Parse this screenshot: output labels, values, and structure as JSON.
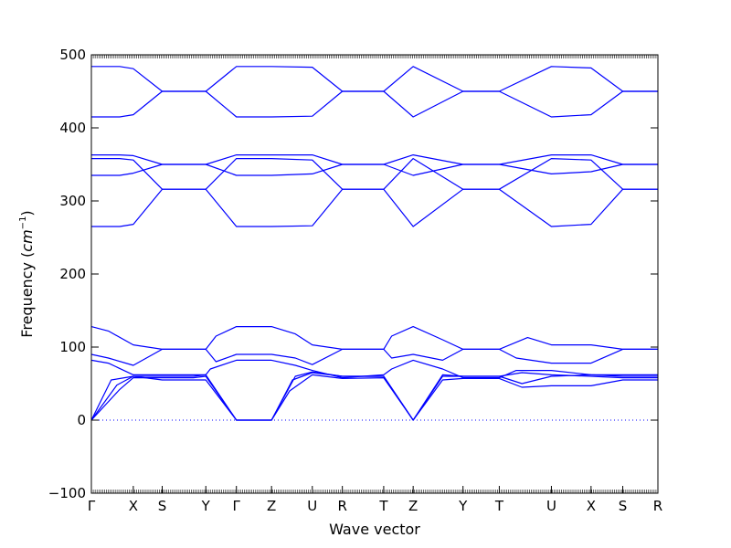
{
  "chart_data": {
    "type": "line",
    "title": "",
    "xlabel": "Wave vector",
    "ylabel_prefix": "Frequency (",
    "ylabel_unit": "cm",
    "ylabel_exp": "−1",
    "ylabel_suffix": ")",
    "ylim": [
      -100,
      500
    ],
    "yticks": [
      "−100",
      "0",
      "100",
      "200",
      "300",
      "400",
      "500"
    ],
    "ytick_values": [
      -100,
      0,
      100,
      200,
      300,
      400,
      500
    ],
    "grid": false,
    "legend": "none",
    "zero_line": true,
    "line_color": "#0000ff",
    "q_points": [
      "Γ",
      "X",
      "S",
      "Y",
      "Γ",
      "Z",
      "U",
      "R",
      "T",
      "Z",
      "Y",
      "T",
      "U",
      "X",
      "S",
      "R"
    ],
    "q_positions": [
      0.0,
      0.74,
      1.25,
      2.02,
      2.56,
      3.18,
      3.9,
      4.43,
      5.16,
      5.68,
      6.56,
      7.2,
      8.12,
      8.82,
      9.38,
      10.0
    ],
    "series": [
      {
        "points": [
          [
            0,
            0
          ],
          [
            0.5,
            42
          ],
          [
            0.74,
            58
          ],
          [
            1.25,
            58
          ],
          [
            1.8,
            58
          ],
          [
            2.02,
            60
          ],
          [
            2.56,
            0
          ],
          [
            3.18,
            0
          ],
          [
            3.5,
            40
          ],
          [
            3.9,
            62
          ],
          [
            4.43,
            57
          ],
          [
            5.16,
            58
          ],
          [
            5.68,
            0
          ],
          [
            6.2,
            55
          ],
          [
            6.56,
            57
          ],
          [
            7.2,
            57
          ],
          [
            7.6,
            45
          ],
          [
            8.12,
            47
          ],
          [
            8.82,
            47
          ],
          [
            9.38,
            55
          ],
          [
            10,
            55
          ]
        ]
      },
      {
        "points": [
          [
            0,
            0
          ],
          [
            0.45,
            48
          ],
          [
            0.74,
            60
          ],
          [
            1.25,
            60
          ],
          [
            1.8,
            60
          ],
          [
            2.02,
            62
          ],
          [
            2.56,
            0
          ],
          [
            3.18,
            0
          ],
          [
            3.55,
            55
          ],
          [
            3.9,
            65
          ],
          [
            4.43,
            60
          ],
          [
            5.16,
            60
          ],
          [
            5.68,
            0
          ],
          [
            6.2,
            60
          ],
          [
            6.56,
            60
          ],
          [
            7.2,
            60
          ],
          [
            7.6,
            65
          ],
          [
            8.12,
            62
          ],
          [
            8.82,
            60
          ],
          [
            9.38,
            58
          ],
          [
            10,
            58
          ]
        ]
      },
      {
        "points": [
          [
            0,
            0
          ],
          [
            0.35,
            55
          ],
          [
            0.74,
            60
          ],
          [
            1.25,
            55
          ],
          [
            1.8,
            55
          ],
          [
            2.02,
            55
          ],
          [
            2.56,
            0
          ],
          [
            3.18,
            0
          ],
          [
            3.6,
            60
          ],
          [
            3.9,
            66
          ],
          [
            4.43,
            60
          ],
          [
            5.16,
            60
          ],
          [
            5.68,
            0
          ],
          [
            6.2,
            62
          ],
          [
            6.56,
            60
          ],
          [
            7.2,
            60
          ],
          [
            7.6,
            50
          ],
          [
            8.12,
            60
          ],
          [
            8.82,
            62
          ],
          [
            9.38,
            62
          ],
          [
            10,
            62
          ]
        ]
      },
      {
        "points": [
          [
            0,
            82
          ],
          [
            0.3,
            78
          ],
          [
            0.74,
            62
          ],
          [
            1.25,
            62
          ],
          [
            1.8,
            62
          ],
          [
            2.02,
            62
          ],
          [
            2.1,
            70
          ],
          [
            2.56,
            82
          ],
          [
            3.18,
            82
          ],
          [
            3.6,
            75
          ],
          [
            3.9,
            68
          ],
          [
            4.43,
            58
          ],
          [
            5.16,
            62
          ],
          [
            5.3,
            70
          ],
          [
            5.68,
            82
          ],
          [
            6.2,
            70
          ],
          [
            6.56,
            58
          ],
          [
            7.2,
            58
          ],
          [
            7.5,
            68
          ],
          [
            8.12,
            68
          ],
          [
            8.82,
            62
          ],
          [
            9.38,
            60
          ],
          [
            10,
            60
          ]
        ]
      },
      {
        "points": [
          [
            0,
            90
          ],
          [
            0.3,
            85
          ],
          [
            0.74,
            75
          ],
          [
            1.25,
            97
          ],
          [
            1.8,
            97
          ],
          [
            2.02,
            97
          ],
          [
            2.2,
            80
          ],
          [
            2.56,
            90
          ],
          [
            3.18,
            90
          ],
          [
            3.6,
            85
          ],
          [
            3.9,
            76
          ],
          [
            4.43,
            97
          ],
          [
            5.16,
            97
          ],
          [
            5.3,
            85
          ],
          [
            5.68,
            90
          ],
          [
            6.2,
            82
          ],
          [
            6.56,
            97
          ],
          [
            7.2,
            97
          ],
          [
            7.5,
            85
          ],
          [
            8.12,
            78
          ],
          [
            8.82,
            78
          ],
          [
            9.38,
            97
          ],
          [
            10,
            97
          ]
        ]
      },
      {
        "points": [
          [
            0,
            128
          ],
          [
            0.3,
            122
          ],
          [
            0.74,
            103
          ],
          [
            1.25,
            97
          ],
          [
            1.8,
            97
          ],
          [
            2.02,
            97
          ],
          [
            2.2,
            115
          ],
          [
            2.56,
            128
          ],
          [
            3.18,
            128
          ],
          [
            3.6,
            118
          ],
          [
            3.9,
            103
          ],
          [
            4.43,
            97
          ],
          [
            5.16,
            97
          ],
          [
            5.3,
            115
          ],
          [
            5.68,
            128
          ],
          [
            6.2,
            110
          ],
          [
            6.56,
            97
          ],
          [
            7.2,
            97
          ],
          [
            7.7,
            113
          ],
          [
            8.12,
            103
          ],
          [
            8.82,
            103
          ],
          [
            9.38,
            97
          ],
          [
            10,
            97
          ]
        ]
      },
      {
        "points": [
          [
            0,
            265
          ],
          [
            0.5,
            265
          ],
          [
            0.74,
            268
          ],
          [
            1.25,
            316
          ],
          [
            1.8,
            316
          ],
          [
            2.02,
            316
          ],
          [
            2.56,
            265
          ],
          [
            3.18,
            265
          ],
          [
            3.9,
            266
          ],
          [
            4.43,
            316
          ],
          [
            5.16,
            316
          ],
          [
            5.68,
            265
          ],
          [
            6.56,
            316
          ],
          [
            7.2,
            316
          ],
          [
            8.12,
            265
          ],
          [
            8.82,
            268
          ],
          [
            9.38,
            316
          ],
          [
            10,
            316
          ]
        ]
      },
      {
        "points": [
          [
            0,
            335
          ],
          [
            0.5,
            335
          ],
          [
            0.74,
            338
          ],
          [
            1.25,
            350
          ],
          [
            1.8,
            350
          ],
          [
            2.02,
            350
          ],
          [
            2.56,
            335
          ],
          [
            3.18,
            335
          ],
          [
            3.9,
            337
          ],
          [
            4.43,
            350
          ],
          [
            5.16,
            350
          ],
          [
            5.68,
            335
          ],
          [
            6.56,
            350
          ],
          [
            7.2,
            350
          ],
          [
            8.12,
            337
          ],
          [
            8.82,
            340
          ],
          [
            9.38,
            350
          ],
          [
            10,
            350
          ]
        ]
      },
      {
        "points": [
          [
            0,
            358
          ],
          [
            0.5,
            358
          ],
          [
            0.74,
            356
          ],
          [
            1.25,
            316
          ],
          [
            1.8,
            316
          ],
          [
            2.02,
            316
          ],
          [
            2.56,
            358
          ],
          [
            3.18,
            358
          ],
          [
            3.9,
            356
          ],
          [
            4.43,
            316
          ],
          [
            5.16,
            316
          ],
          [
            5.68,
            358
          ],
          [
            6.56,
            316
          ],
          [
            7.2,
            316
          ],
          [
            8.12,
            358
          ],
          [
            8.82,
            356
          ],
          [
            9.38,
            316
          ],
          [
            10,
            316
          ]
        ]
      },
      {
        "points": [
          [
            0,
            363
          ],
          [
            0.5,
            363
          ],
          [
            0.74,
            362
          ],
          [
            1.25,
            350
          ],
          [
            1.8,
            350
          ],
          [
            2.02,
            350
          ],
          [
            2.56,
            363
          ],
          [
            3.18,
            363
          ],
          [
            3.9,
            363
          ],
          [
            4.43,
            350
          ],
          [
            5.16,
            350
          ],
          [
            5.68,
            363
          ],
          [
            6.56,
            350
          ],
          [
            7.2,
            350
          ],
          [
            8.12,
            363
          ],
          [
            8.82,
            363
          ],
          [
            9.38,
            350
          ],
          [
            10,
            350
          ]
        ]
      },
      {
        "points": [
          [
            0,
            415
          ],
          [
            0.5,
            415
          ],
          [
            0.74,
            418
          ],
          [
            1.25,
            450
          ],
          [
            1.8,
            450
          ],
          [
            2.02,
            450
          ],
          [
            2.56,
            415
          ],
          [
            3.18,
            415
          ],
          [
            3.9,
            416
          ],
          [
            4.43,
            450
          ],
          [
            5.16,
            450
          ],
          [
            5.68,
            415
          ],
          [
            6.56,
            450
          ],
          [
            7.2,
            450
          ],
          [
            8.12,
            415
          ],
          [
            8.82,
            418
          ],
          [
            9.38,
            450
          ],
          [
            10,
            450
          ]
        ]
      },
      {
        "points": [
          [
            0,
            484
          ],
          [
            0.5,
            484
          ],
          [
            0.74,
            481
          ],
          [
            1.25,
            450
          ],
          [
            1.8,
            450
          ],
          [
            2.02,
            450
          ],
          [
            2.56,
            484
          ],
          [
            3.18,
            484
          ],
          [
            3.9,
            483
          ],
          [
            4.43,
            450
          ],
          [
            5.16,
            450
          ],
          [
            5.68,
            484
          ],
          [
            6.56,
            450
          ],
          [
            7.2,
            450
          ],
          [
            8.12,
            484
          ],
          [
            8.82,
            482
          ],
          [
            9.38,
            450
          ],
          [
            10,
            450
          ]
        ]
      }
    ]
  }
}
